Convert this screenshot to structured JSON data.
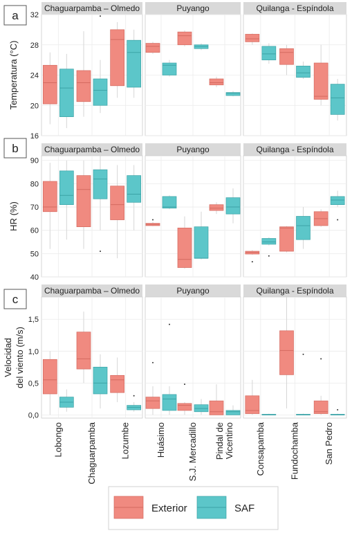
{
  "chart_data": {
    "type": "box",
    "strips": [
      "Chaguarpamba – Olmedo",
      "Puyango",
      "Quilanga - Espíndola"
    ],
    "sites": [
      [
        "Lobongo",
        "Chaguarpamba",
        "Lozumbe"
      ],
      [
        "Huásimo",
        "S.J. Mercadillo",
        "Pindal de\nVicentino"
      ],
      [
        "Consapamba",
        "Fundochamba",
        "San Pedro"
      ]
    ],
    "series": [
      {
        "name": "Exterior",
        "color": "#F08A80",
        "edge": "#D46A60"
      },
      {
        "name": "SAF",
        "color": "#5CC6C9",
        "edge": "#3BA3A6"
      }
    ],
    "panels": [
      {
        "tag": "a",
        "ylabel": [
          "Temperatura (°C)"
        ],
        "ylim": [
          16,
          32
        ],
        "ticks": [
          16,
          20,
          24,
          28,
          32
        ],
        "tick_labels": [
          "16",
          "20",
          "24",
          "28",
          "32"
        ],
        "boxes": [
          [
            [
              20.2,
              23.0,
              25.3,
              17.5,
              27.0,
              []
            ],
            [
              18.5,
              22.3,
              24.8,
              17.0,
              26.8,
              []
            ]
          ],
          [
            [
              20.5,
              23.0,
              24.6,
              18.5,
              29.8,
              []
            ],
            [
              20.0,
              22.0,
              23.5,
              19.0,
              26.0,
              [
                31.8
              ]
            ]
          ],
          [
            [
              22.6,
              28.7,
              30.0,
              21.0,
              31.0,
              []
            ],
            [
              22.4,
              27.0,
              28.6,
              21.0,
              30.0,
              []
            ]
          ],
          [
            [
              27.0,
              27.8,
              28.2,
              26.8,
              28.4,
              []
            ],
            [
              24.0,
              25.3,
              25.6,
              23.8,
              26.0,
              []
            ]
          ],
          [
            [
              28.0,
              29.2,
              29.7,
              27.8,
              29.9,
              []
            ],
            [
              27.5,
              27.8,
              28.0,
              27.3,
              28.2,
              []
            ]
          ],
          [
            [
              22.7,
              23.0,
              23.5,
              22.4,
              23.8,
              []
            ],
            [
              21.3,
              21.6,
              21.7,
              21.2,
              21.9,
              []
            ]
          ],
          [
            [
              28.4,
              28.8,
              29.4,
              28.0,
              29.5,
              []
            ],
            [
              26.0,
              26.8,
              27.8,
              25.5,
              28.2,
              []
            ]
          ],
          [
            [
              25.4,
              27.0,
              27.5,
              24.0,
              28.0,
              []
            ],
            [
              23.7,
              24.3,
              25.2,
              23.5,
              25.8,
              []
            ]
          ],
          [
            [
              20.8,
              21.2,
              25.6,
              20.0,
              28.0,
              []
            ],
            [
              18.8,
              21.0,
              22.8,
              18.0,
              23.5,
              []
            ]
          ]
        ]
      },
      {
        "tag": "b",
        "ylabel": [
          "HR (%)"
        ],
        "ylim": [
          40,
          92
        ],
        "ticks": [
          40,
          50,
          60,
          70,
          80,
          90
        ],
        "tick_labels": [
          "40",
          "50",
          "60",
          "70",
          "80",
          "90"
        ],
        "boxes": [
          [
            [
              68.0,
              70.0,
              81.0,
              52.0,
              89.0,
              []
            ],
            [
              71.0,
              75.0,
              85.5,
              56.0,
              90.0,
              []
            ]
          ],
          [
            [
              61.5,
              77.5,
              83.5,
              52.0,
              90.0,
              []
            ],
            [
              73.5,
              82.0,
              86.0,
              60.0,
              92.0,
              [
                51.0
              ]
            ]
          ],
          [
            [
              64.5,
              71.0,
              79.0,
              48.0,
              88.0,
              []
            ],
            [
              72.0,
              75.5,
              83.5,
              60.0,
              88.0,
              []
            ]
          ],
          [
            [
              62.0,
              62.5,
              63.0,
              61.8,
              63.5,
              [
                64.5
              ]
            ],
            [
              69.5,
              70.0,
              74.5,
              69.0,
              75.0,
              []
            ]
          ],
          [
            [
              44.0,
              47.5,
              61.0,
              43.5,
              66.0,
              []
            ],
            [
              48.0,
              48.0,
              61.5,
              47.5,
              68.0,
              []
            ]
          ],
          [
            [
              68.5,
              69.5,
              71.0,
              67.0,
              72.0,
              []
            ],
            [
              67.0,
              70.0,
              74.0,
              63.0,
              78.0,
              []
            ]
          ],
          [
            [
              49.8,
              50.5,
              51.0,
              49.5,
              51.5,
              [
                46.5
              ]
            ],
            [
              54.0,
              55.0,
              56.5,
              53.5,
              57.0,
              [
                49.0
              ]
            ]
          ],
          [
            [
              51.0,
              61.0,
              61.5,
              50.5,
              61.8,
              []
            ],
            [
              56.0,
              62.0,
              66.0,
              52.0,
              70.0,
              []
            ]
          ],
          [
            [
              62.0,
              65.0,
              68.0,
              61.5,
              69.0,
              []
            ],
            [
              71.0,
              73.0,
              74.5,
              70.0,
              77.0,
              [
                64.5
              ]
            ]
          ]
        ]
      },
      {
        "tag": "c",
        "ylabel": [
          "Velocidad",
          "del viento (m/s)"
        ],
        "ylim": [
          -0.05,
          1.85
        ],
        "ticks": [
          0,
          0.5,
          1.0,
          1.5
        ],
        "tick_labels": [
          "0,0",
          "0,5",
          "1,0",
          "1,5"
        ],
        "boxes": [
          [
            [
              0.33,
              0.55,
              0.87,
              0.0,
              1.0,
              []
            ],
            [
              0.12,
              0.2,
              0.28,
              0.05,
              0.4,
              []
            ]
          ],
          [
            [
              0.72,
              0.88,
              1.3,
              0.5,
              1.62,
              []
            ],
            [
              0.33,
              0.5,
              0.75,
              0.1,
              0.95,
              []
            ]
          ],
          [
            [
              0.35,
              0.55,
              0.62,
              0.2,
              0.9,
              []
            ],
            [
              0.08,
              0.12,
              0.15,
              0.05,
              0.2,
              [
                0.3
              ]
            ]
          ],
          [
            [
              0.1,
              0.22,
              0.28,
              0.0,
              0.45,
              [
                0.82
              ]
            ],
            [
              0.07,
              0.25,
              0.32,
              0.0,
              0.45,
              [
                1.42
              ]
            ]
          ],
          [
            [
              0.07,
              0.15,
              0.18,
              0.0,
              0.2,
              [
                0.48
              ]
            ],
            [
              0.05,
              0.1,
              0.16,
              0.0,
              0.25,
              []
            ]
          ],
          [
            [
              0.0,
              0.05,
              0.22,
              0.0,
              0.48,
              []
            ],
            [
              0.0,
              0.05,
              0.07,
              0.0,
              0.15,
              []
            ]
          ],
          [
            [
              0.02,
              0.07,
              0.3,
              0.0,
              0.55,
              []
            ],
            [
              0.0,
              0.0,
              0.01,
              0.0,
              0.02,
              []
            ]
          ],
          [
            [
              0.63,
              1.01,
              1.32,
              0.1,
              1.85,
              []
            ],
            [
              0.0,
              0.0,
              0.01,
              0.0,
              0.02,
              [
                0.95
              ]
            ]
          ],
          [
            [
              0.02,
              0.05,
              0.22,
              0.0,
              0.3,
              [
                0.88
              ]
            ],
            [
              0.0,
              0.0,
              0.01,
              0.0,
              0.02,
              [
                0.08
              ]
            ]
          ]
        ]
      }
    ],
    "legend": {
      "position": "bottom",
      "labels": [
        "Exterior",
        "SAF"
      ]
    }
  }
}
